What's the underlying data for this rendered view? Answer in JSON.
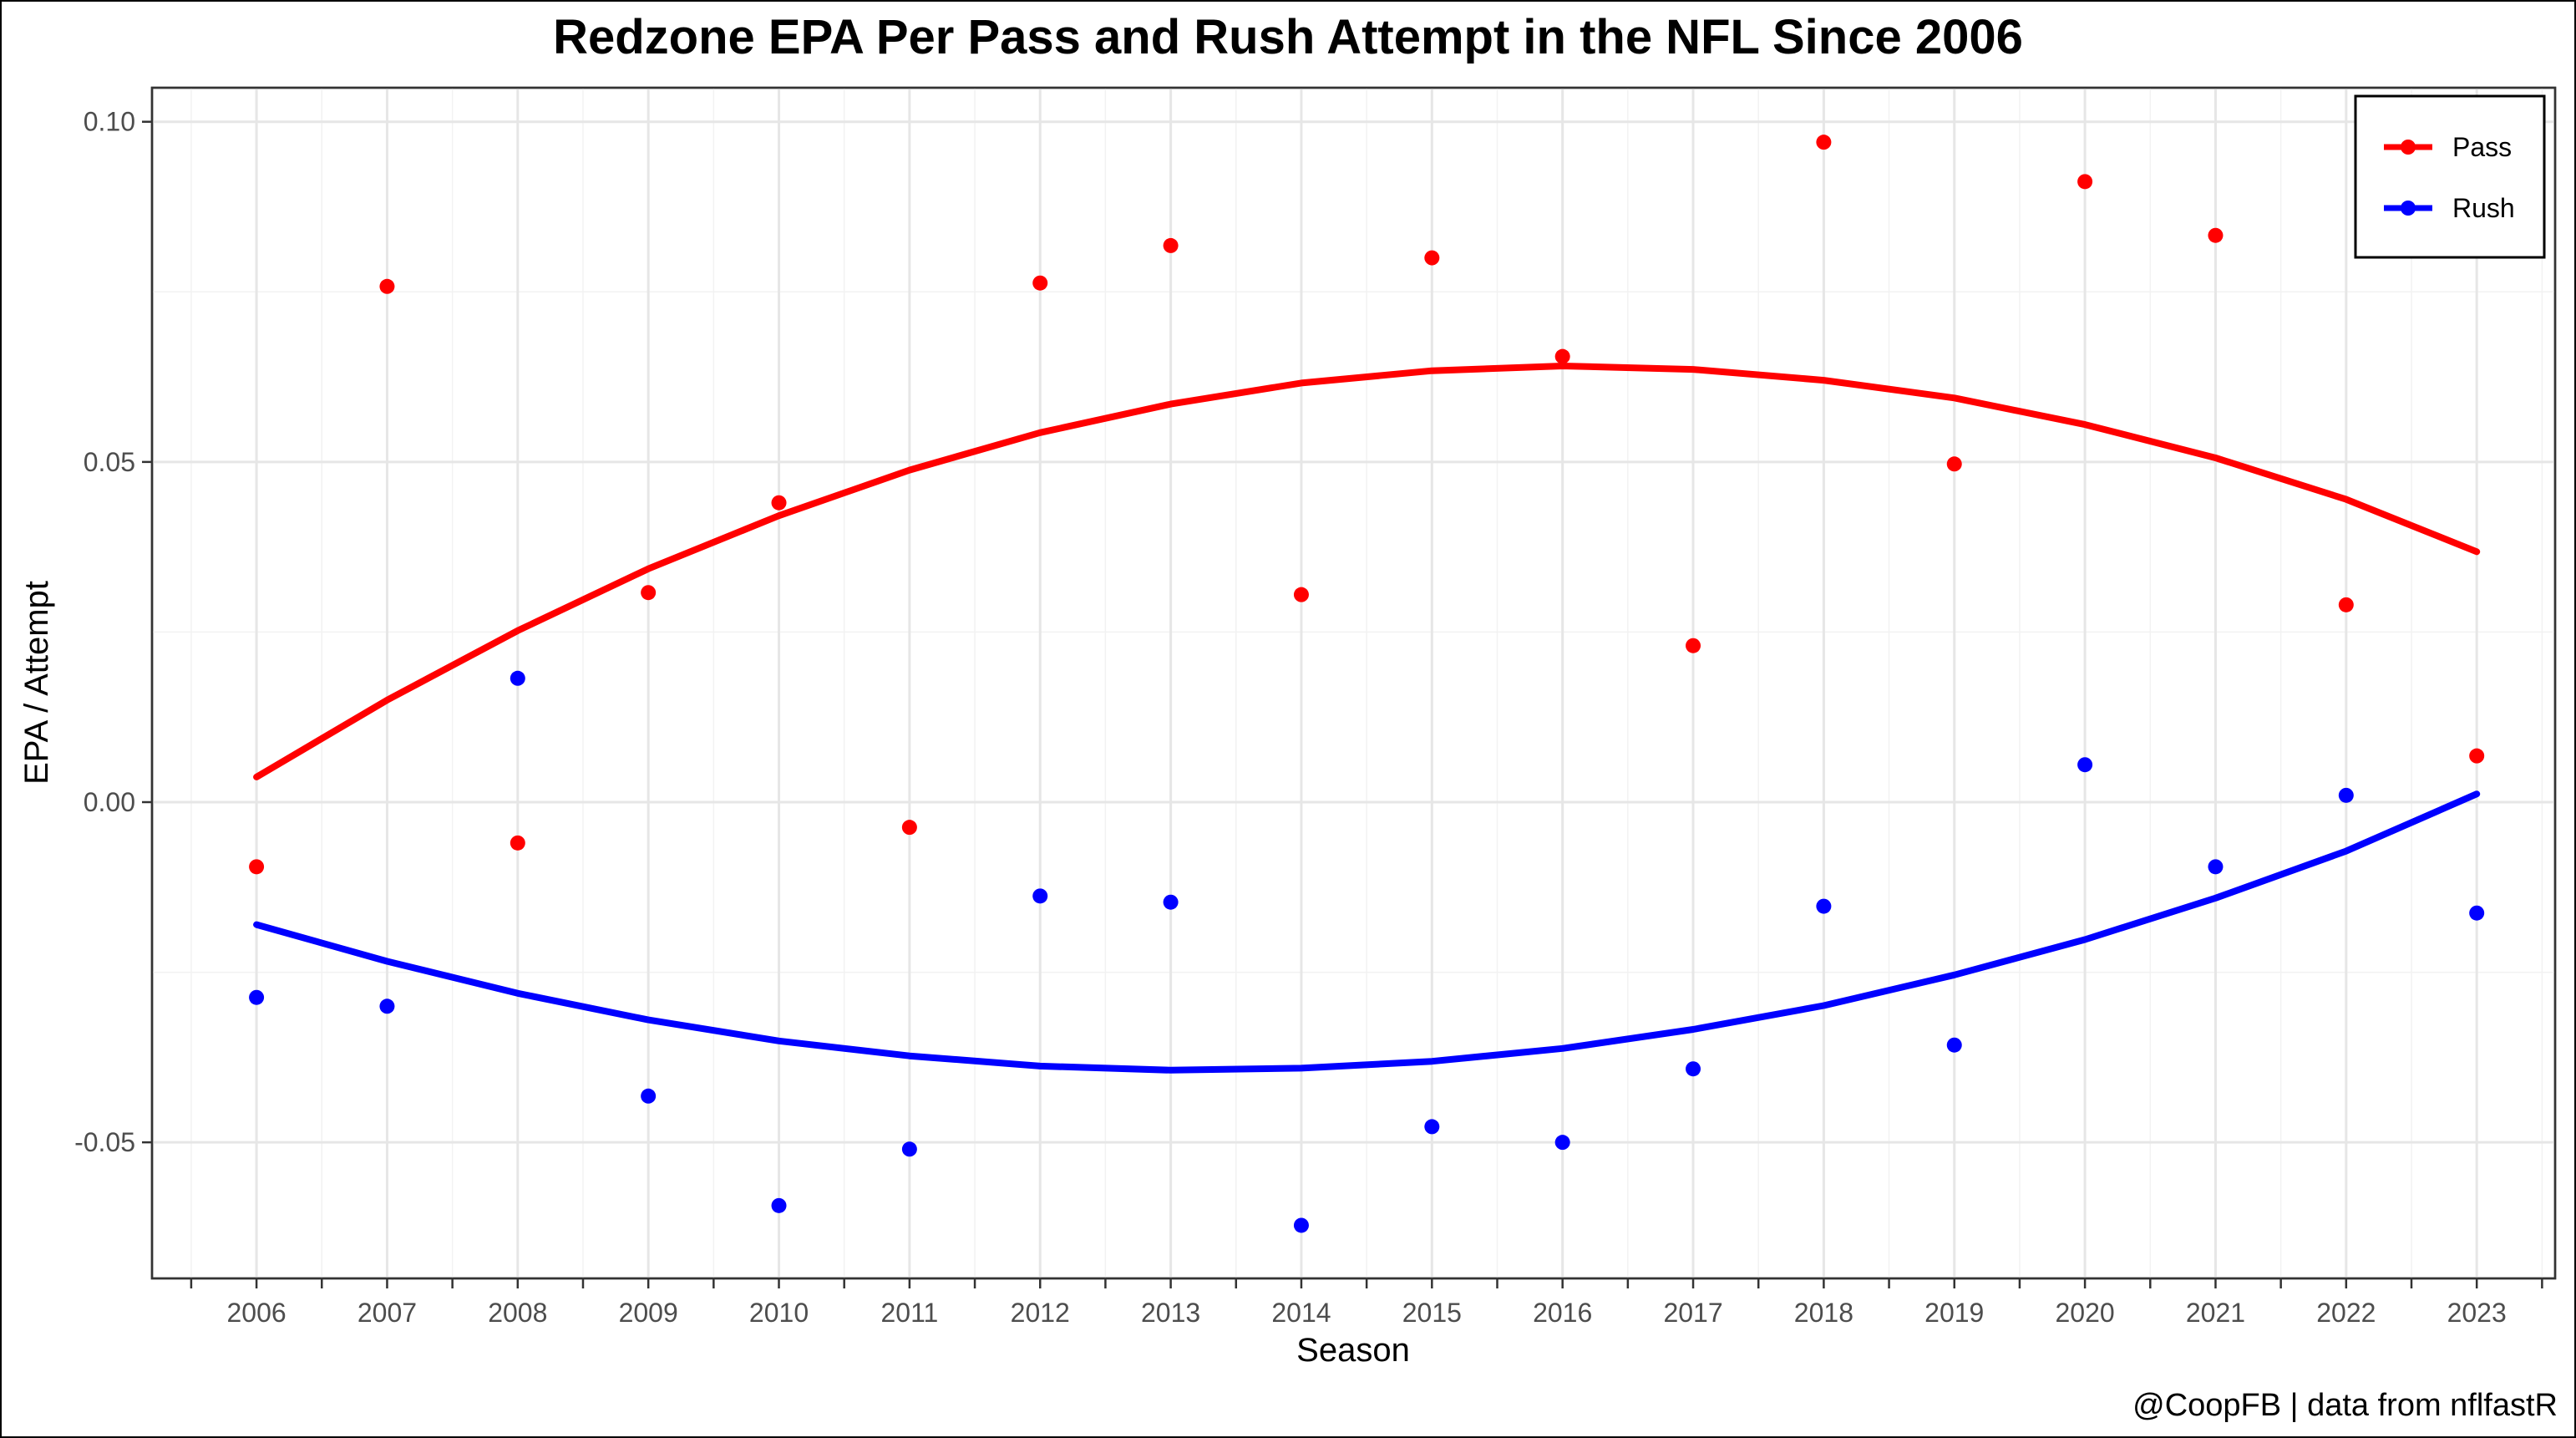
{
  "chart_data": {
    "type": "scatter",
    "title": "Redzone EPA Per Pass and Rush Attempt in the NFL Since 2006",
    "xlabel": "Season",
    "ylabel": "EPA / Attempt",
    "caption": "@CoopFB | data from nflfastR",
    "x": [
      2006,
      2007,
      2008,
      2009,
      2010,
      2011,
      2012,
      2013,
      2014,
      2015,
      2016,
      2017,
      2018,
      2019,
      2020,
      2021,
      2022,
      2023
    ],
    "xlim": [
      2005.2,
      2023.6
    ],
    "ylim": [
      -0.07,
      0.105
    ],
    "x_ticks": [
      "2006",
      "2007",
      "2008",
      "2009",
      "2010",
      "2011",
      "2012",
      "2013",
      "2014",
      "2015",
      "2016",
      "2017",
      "2018",
      "2019",
      "2020",
      "2021",
      "2022",
      "2023"
    ],
    "y_ticks": [
      {
        "value": -0.05,
        "label": "-0.05"
      },
      {
        "value": 0.0,
        "label": "0.00"
      },
      {
        "value": 0.05,
        "label": "0.05"
      },
      {
        "value": 0.1,
        "label": "0.10"
      }
    ],
    "grid": true,
    "legend_position": "top-right",
    "series": [
      {
        "name": "Pass",
        "color": "#ff0000",
        "values": [
          -0.0095,
          0.0758,
          -0.006,
          0.0308,
          0.044,
          -0.0037,
          0.0763,
          0.0818,
          0.0305,
          0.08,
          0.0655,
          0.023,
          0.097,
          0.0497,
          0.0912,
          0.0833,
          0.029,
          0.0068
        ],
        "trend": [
          0.0037,
          0.015,
          0.0252,
          0.0343,
          0.0421,
          0.0488,
          0.0543,
          0.0585,
          0.0616,
          0.0634,
          0.0641,
          0.0636,
          0.062,
          0.0594,
          0.0555,
          0.0506,
          0.0445,
          0.0368
        ]
      },
      {
        "name": "Rush",
        "color": "#0000ff",
        "values": [
          -0.0287,
          -0.03,
          0.0182,
          -0.0432,
          -0.0593,
          -0.051,
          -0.0138,
          -0.0147,
          -0.0622,
          -0.0477,
          -0.05,
          -0.0392,
          -0.0153,
          -0.0357,
          0.0055,
          -0.0095,
          0.001,
          -0.0163
        ],
        "trend": [
          -0.018,
          -0.0234,
          -0.0281,
          -0.032,
          -0.0351,
          -0.0373,
          -0.0388,
          -0.0394,
          -0.0391,
          -0.0381,
          -0.0362,
          -0.0334,
          -0.0299,
          -0.0254,
          -0.0202,
          -0.0141,
          -0.0072,
          0.0012
        ]
      }
    ]
  }
}
